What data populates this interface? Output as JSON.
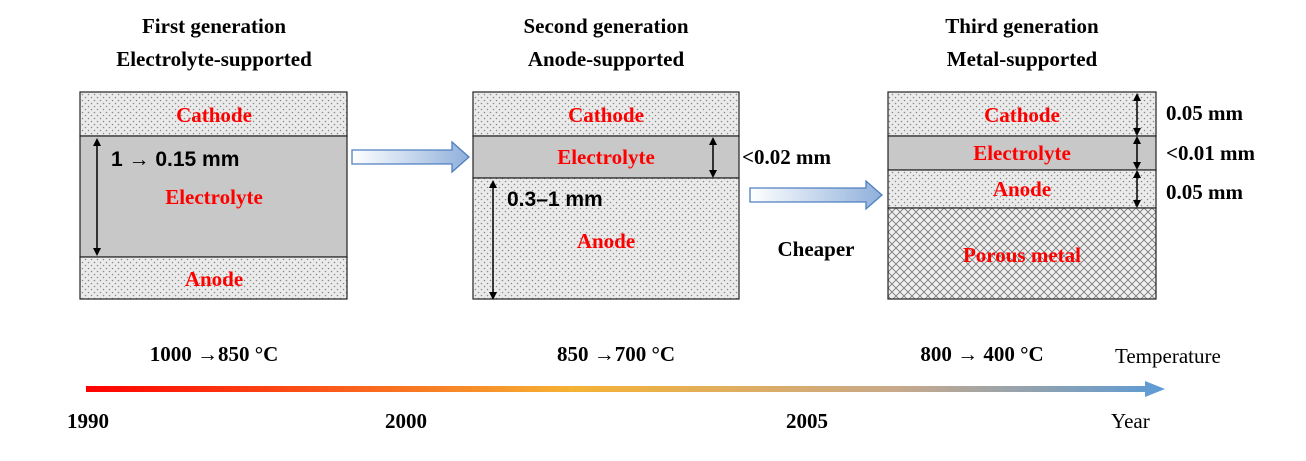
{
  "colors": {
    "layer_text": "#ff0000",
    "electrolyte_fill": "#c8c8c8",
    "dot_fill": "#ebebeb",
    "outline": "#222222",
    "arrow_fill_start": "#ffffff",
    "arrow_fill_end": "#8fb0db",
    "arrow_stroke": "#4f7fc0",
    "timeline_start": "#ff0000",
    "timeline_mid": "#f5b234",
    "timeline_end": "#5b9bd5"
  },
  "icons": {
    "gen_arrow": "right-block-arrow",
    "thickness": "double-headed-vertical-arrow",
    "timeline": "gradient-arrow"
  },
  "generations": [
    {
      "title_line1": "First generation",
      "title_line2": "Electrolyte-supported",
      "cathode": "Cathode",
      "electrolyte": "Electrolyte",
      "anode": "Anode",
      "thickness": "1 → 0.15 mm",
      "temperature": "1000 →850 °C"
    },
    {
      "title_line1": "Second generation",
      "title_line2": "Anode-supported",
      "cathode": "Cathode",
      "electrolyte": "Electrolyte",
      "anode": "Anode",
      "anode_thickness": "0.3–1 mm",
      "electrolyte_thickness": "<0.02 mm",
      "temperature": "850 →700 °C"
    },
    {
      "title_line1": "Third generation",
      "title_line2": "Metal-supported",
      "cathode": "Cathode",
      "electrolyte": "Electrolyte",
      "anode": "Anode",
      "support": "Porous metal",
      "cathode_thickness": "0.05 mm",
      "electrolyte_thickness": "<0.01 mm",
      "anode_thickness": "0.05 mm",
      "temperature": "800 → 400 °C"
    }
  ],
  "cheaper_label": "Cheaper",
  "timeline": {
    "temperature_label": "Temperature",
    "year_label": "Year",
    "years": [
      "1990",
      "2000",
      "2005"
    ]
  }
}
